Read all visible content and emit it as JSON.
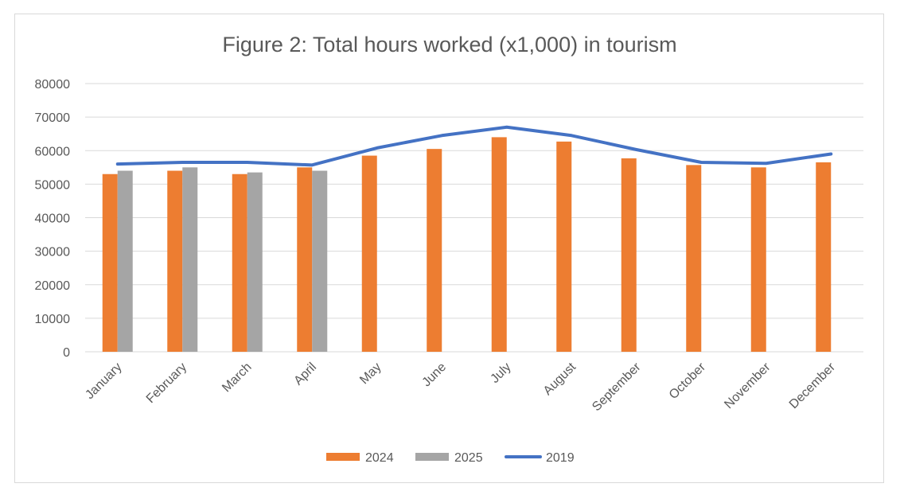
{
  "chart_data": {
    "type": "bar",
    "title": "Figure 2: Total hours worked (x1,000) in tourism",
    "xlabel": "",
    "ylabel": "",
    "ylim": [
      0,
      80000
    ],
    "yticks": [
      0,
      10000,
      20000,
      30000,
      40000,
      50000,
      60000,
      70000,
      80000
    ],
    "categories": [
      "January",
      "February",
      "March",
      "April",
      "May",
      "June",
      "July",
      "August",
      "September",
      "October",
      "November",
      "December"
    ],
    "grid": true,
    "legend_position": "bottom",
    "series": [
      {
        "name": "2024",
        "kind": "bar",
        "color": "#ed7d31",
        "values": [
          53000,
          54000,
          53000,
          55000,
          58500,
          60500,
          64000,
          62700,
          57700,
          55700,
          55000,
          56500
        ]
      },
      {
        "name": "2025",
        "kind": "bar",
        "color": "#a5a5a5",
        "values": [
          54000,
          55000,
          53500,
          54000,
          null,
          null,
          null,
          null,
          null,
          null,
          null,
          null
        ]
      },
      {
        "name": "2019",
        "kind": "line",
        "color": "#4472c4",
        "values": [
          56000,
          56500,
          56500,
          55700,
          60800,
          64500,
          67000,
          64500,
          60300,
          56500,
          56200,
          59000
        ]
      }
    ]
  }
}
